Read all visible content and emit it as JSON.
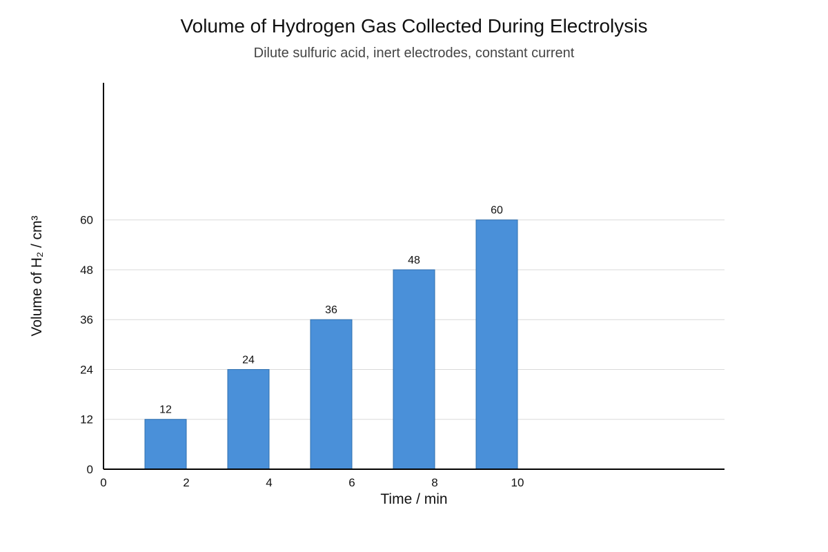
{
  "chart_data": {
    "type": "bar",
    "title": "Volume of Hydrogen Gas Collected During Electrolysis",
    "subtitle": "Dilute sulfuric acid, inert electrodes, constant current",
    "xlabel": "Time / min",
    "ylabel": "Volume of H₂ / cm³",
    "x": [
      2,
      4,
      6,
      8,
      10
    ],
    "values": [
      12,
      24,
      36,
      48,
      60
    ],
    "data_labels": [
      "12",
      "24",
      "36",
      "48",
      "60"
    ],
    "xlim": [
      0,
      15
    ],
    "ylim": [
      0,
      93
    ],
    "x_ticks": [
      0,
      2,
      4,
      6,
      8,
      10
    ],
    "x_tick_labels": [
      "0",
      "2",
      "4",
      "6",
      "8",
      "10"
    ],
    "y_ticks": [
      0,
      12,
      24,
      36,
      48,
      60
    ],
    "y_tick_labels": [
      "0",
      "12",
      "24",
      "36",
      "48",
      "60"
    ],
    "grid": "horizontal",
    "legend": "none",
    "colors": {
      "bar_fill": "#4a90d9",
      "bar_stroke": "#2f6fae",
      "grid": "#d9d9d9",
      "axis": "#000000"
    }
  }
}
